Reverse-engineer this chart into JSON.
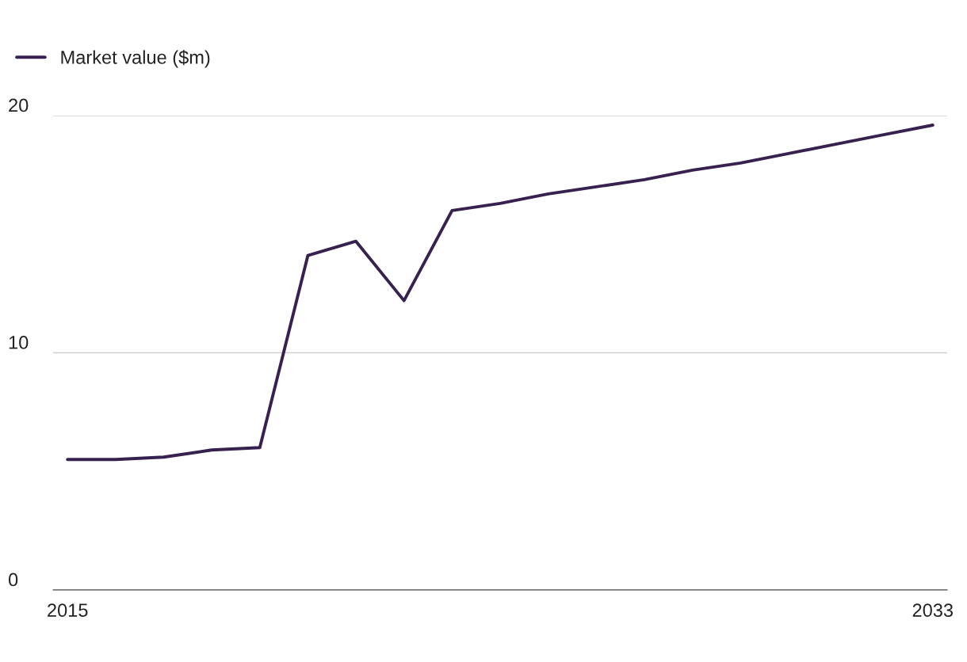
{
  "chart_data": {
    "type": "line",
    "x": [
      2015,
      2016,
      2017,
      2018,
      2019,
      2020,
      2021,
      2022,
      2023,
      2024,
      2025,
      2026,
      2027,
      2028,
      2029,
      2030,
      2031,
      2032,
      2033
    ],
    "series": [
      {
        "name": "Market value ($m)",
        "color": "#37214f",
        "values": [
          5.5,
          5.5,
          5.6,
          5.9,
          6.0,
          14.1,
          14.7,
          12.2,
          16.0,
          16.3,
          16.7,
          17.0,
          17.3,
          17.7,
          18.0,
          18.4,
          18.8,
          19.2,
          19.6
        ]
      }
    ],
    "xlim": [
      2014.7,
      2033.3
    ],
    "xticks": [
      2015,
      2033
    ],
    "ylim": [
      0,
      20
    ],
    "yticks": [
      0,
      10,
      20
    ],
    "grid": "y",
    "legend": "top left",
    "marker": "none",
    "line_style": "solid"
  }
}
